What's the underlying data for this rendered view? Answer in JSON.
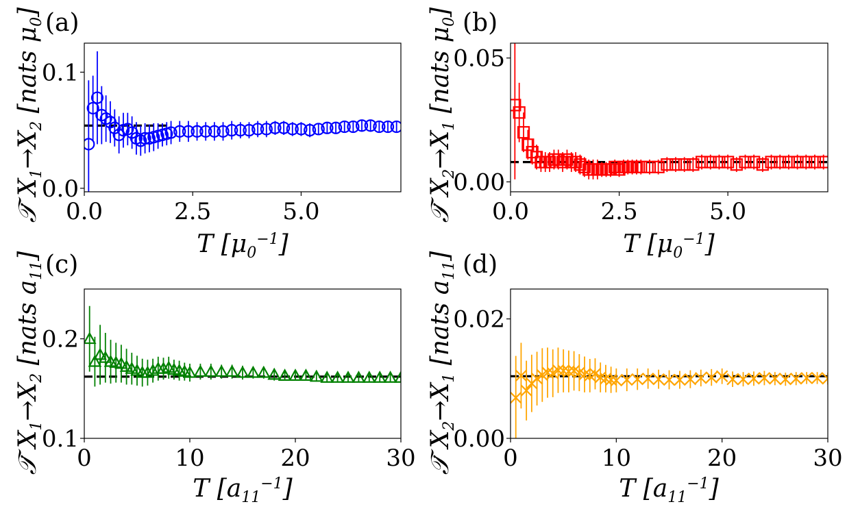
{
  "chart_data": [
    {
      "panel_label": "(a)",
      "type": "scatter",
      "marker": "circle",
      "color": "#0000ff",
      "xlabel": "T [μ0^-1]",
      "ylabel": "𝒯̇ X1→X2 [nats μ0]",
      "xlim": [
        0,
        7.3
      ],
      "ylim": [
        -0.003,
        0.125
      ],
      "xticks": [
        0,
        2.5,
        5
      ],
      "xtick_labels": [
        "0.0",
        "2.5",
        "5.0"
      ],
      "yticks": [
        0,
        0.1
      ],
      "ytick_labels": [
        "0.0",
        "0.1"
      ],
      "reference_line": 0.054,
      "reference_xrange": [
        0,
        2.0
      ],
      "series": [
        {
          "x": [
            0.1,
            0.2,
            0.3,
            0.4,
            0.5,
            0.6,
            0.7,
            0.8,
            0.9,
            1.0,
            1.1,
            1.2,
            1.3,
            1.4,
            1.5,
            1.6,
            1.7,
            1.8,
            1.9,
            2.0,
            2.2,
            2.4,
            2.6,
            2.8,
            3.0,
            3.2,
            3.4,
            3.6,
            3.8,
            4.0,
            4.2,
            4.4,
            4.6,
            4.8,
            5.0,
            5.2,
            5.4,
            5.6,
            5.8,
            6.0,
            6.2,
            6.4,
            6.6,
            6.8,
            7.0,
            7.2
          ],
          "y": [
            0.038,
            0.069,
            0.078,
            0.063,
            0.06,
            0.057,
            0.052,
            0.046,
            0.05,
            0.051,
            0.048,
            0.043,
            0.041,
            0.043,
            0.043,
            0.044,
            0.045,
            0.046,
            0.047,
            0.048,
            0.049,
            0.049,
            0.049,
            0.049,
            0.049,
            0.049,
            0.05,
            0.05,
            0.05,
            0.051,
            0.051,
            0.052,
            0.052,
            0.051,
            0.051,
            0.05,
            0.051,
            0.052,
            0.052,
            0.053,
            0.053,
            0.054,
            0.054,
            0.053,
            0.053,
            0.053
          ],
          "err": [
            0.055,
            0.028,
            0.04,
            0.025,
            0.02,
            0.018,
            0.016,
            0.016,
            0.015,
            0.014,
            0.014,
            0.014,
            0.013,
            0.013,
            0.012,
            0.012,
            0.011,
            0.01,
            0.01,
            0.01,
            0.009,
            0.009,
            0.008,
            0.008,
            0.008,
            0.008,
            0.008,
            0.007,
            0.007,
            0.007,
            0.007,
            0.006,
            0.006,
            0.006,
            0.006,
            0.006,
            0.005,
            0.005,
            0.005,
            0.005,
            0.005,
            0.005,
            0.005,
            0.005,
            0.005,
            0.005
          ]
        }
      ]
    },
    {
      "panel_label": "(b)",
      "type": "scatter",
      "marker": "square",
      "color": "#ff0000",
      "xlabel": "T [μ0^-1]",
      "ylabel": "𝒯̇ X2→X1 [nats μ0]",
      "xlim": [
        0,
        7.3
      ],
      "ylim": [
        -0.004,
        0.056
      ],
      "xticks": [
        0,
        2.5,
        5
      ],
      "xtick_labels": [
        "0.0",
        "2.5",
        "5.0"
      ],
      "yticks": [
        0,
        0.05
      ],
      "ytick_labels": [
        "0.00",
        "0.05"
      ],
      "reference_line": 0.008,
      "reference_xrange": [
        0,
        7.3
      ],
      "series": [
        {
          "x": [
            0.1,
            0.2,
            0.3,
            0.4,
            0.5,
            0.6,
            0.7,
            0.8,
            0.9,
            1.0,
            1.1,
            1.2,
            1.3,
            1.4,
            1.5,
            1.6,
            1.7,
            1.8,
            1.9,
            2.0,
            2.1,
            2.2,
            2.3,
            2.4,
            2.5,
            2.6,
            2.7,
            2.8,
            2.9,
            3.0,
            3.2,
            3.4,
            3.6,
            3.8,
            4.0,
            4.2,
            4.4,
            4.6,
            4.8,
            5.0,
            5.2,
            5.4,
            5.6,
            5.8,
            6.0,
            6.2,
            6.4,
            6.6,
            6.8,
            7.0,
            7.2
          ],
          "y": [
            0.031,
            0.028,
            0.02,
            0.015,
            0.012,
            0.01,
            0.008,
            0.008,
            0.008,
            0.009,
            0.009,
            0.008,
            0.009,
            0.008,
            0.008,
            0.007,
            0.006,
            0.005,
            0.005,
            0.005,
            0.005,
            0.005,
            0.005,
            0.006,
            0.005,
            0.006,
            0.006,
            0.006,
            0.006,
            0.006,
            0.006,
            0.006,
            0.007,
            0.007,
            0.007,
            0.007,
            0.008,
            0.008,
            0.008,
            0.008,
            0.007,
            0.008,
            0.008,
            0.007,
            0.008,
            0.008,
            0.008,
            0.008,
            0.008,
            0.008,
            0.008
          ],
          "err": [
            0.03,
            0.012,
            0.008,
            0.006,
            0.005,
            0.005,
            0.004,
            0.004,
            0.004,
            0.004,
            0.004,
            0.004,
            0.004,
            0.004,
            0.004,
            0.004,
            0.004,
            0.004,
            0.004,
            0.004,
            0.003,
            0.003,
            0.003,
            0.003,
            0.003,
            0.003,
            0.003,
            0.003,
            0.003,
            0.003,
            0.003,
            0.003,
            0.003,
            0.003,
            0.003,
            0.003,
            0.003,
            0.003,
            0.003,
            0.003,
            0.003,
            0.003,
            0.003,
            0.003,
            0.003,
            0.003,
            0.003,
            0.003,
            0.003,
            0.003,
            0.003
          ]
        }
      ]
    },
    {
      "panel_label": "(c)",
      "type": "scatter",
      "marker": "triangle",
      "color": "#008000",
      "xlabel": "T [a11^-1]",
      "ylabel": "𝒯̇ X1→X2 [nats a11]",
      "xlim": [
        0,
        30
      ],
      "ylim": [
        0.1,
        0.25
      ],
      "xticks": [
        0,
        10,
        20,
        30
      ],
      "xtick_labels": [
        "0",
        "10",
        "20",
        "30"
      ],
      "yticks": [
        0.1,
        0.2
      ],
      "ytick_labels": [
        "0.1",
        "0.2"
      ],
      "reference_line": 0.162,
      "reference_xrange": [
        0,
        30
      ],
      "series": [
        {
          "x": [
            0.5,
            1.0,
            1.5,
            2.0,
            2.5,
            3.0,
            3.5,
            4.0,
            4.5,
            5.0,
            5.5,
            6.0,
            6.5,
            7.0,
            7.5,
            8.0,
            8.5,
            9.0,
            9.5,
            10,
            11,
            12,
            13,
            14,
            15,
            16,
            17,
            18,
            19,
            20,
            21,
            22,
            23,
            24,
            25,
            26,
            27,
            28,
            29,
            30
          ],
          "y": [
            0.2,
            0.177,
            0.184,
            0.181,
            0.177,
            0.176,
            0.175,
            0.172,
            0.17,
            0.168,
            0.166,
            0.166,
            0.168,
            0.17,
            0.17,
            0.171,
            0.169,
            0.168,
            0.167,
            0.166,
            0.167,
            0.167,
            0.167,
            0.167,
            0.166,
            0.166,
            0.166,
            0.164,
            0.163,
            0.163,
            0.163,
            0.162,
            0.161,
            0.161,
            0.161,
            0.161,
            0.161,
            0.161,
            0.161,
            0.161
          ],
          "err": [
            0.033,
            0.025,
            0.03,
            0.025,
            0.022,
            0.02,
            0.019,
            0.018,
            0.016,
            0.015,
            0.014,
            0.013,
            0.012,
            0.012,
            0.011,
            0.011,
            0.01,
            0.01,
            0.009,
            0.009,
            0.008,
            0.008,
            0.007,
            0.007,
            0.007,
            0.006,
            0.006,
            0.006,
            0.005,
            0.005,
            0.005,
            0.005,
            0.005,
            0.005,
            0.005,
            0.004,
            0.004,
            0.004,
            0.004,
            0.004
          ]
        }
      ]
    },
    {
      "panel_label": "(d)",
      "type": "scatter",
      "marker": "x",
      "color": "#ffa500",
      "xlabel": "T [a11^-1]",
      "ylabel": "𝒯̇ X2→X1 [nats a11]",
      "xlim": [
        0,
        30
      ],
      "ylim": [
        0,
        0.025
      ],
      "xticks": [
        0,
        10,
        20,
        30
      ],
      "xtick_labels": [
        "0",
        "10",
        "20",
        "30"
      ],
      "yticks": [
        0,
        0.02
      ],
      "ytick_labels": [
        "0.00",
        "0.02"
      ],
      "reference_line": 0.0104,
      "reference_xrange": [
        0,
        30
      ],
      "series": [
        {
          "x": [
            0.5,
            1.0,
            1.5,
            2.0,
            2.5,
            3.0,
            3.5,
            4.0,
            4.5,
            5.0,
            5.5,
            6.0,
            6.5,
            7.0,
            7.5,
            8.0,
            8.5,
            9.0,
            9.5,
            10,
            11,
            12,
            13,
            14,
            15,
            16,
            17,
            18,
            19,
            20,
            21,
            22,
            23,
            24,
            25,
            26,
            27,
            28,
            29,
            30
          ],
          "y": [
            0.0068,
            0.0105,
            0.008,
            0.0092,
            0.01,
            0.0106,
            0.011,
            0.0109,
            0.0114,
            0.0113,
            0.0112,
            0.0113,
            0.011,
            0.0107,
            0.0105,
            0.0108,
            0.0102,
            0.01,
            0.0098,
            0.0097,
            0.0098,
            0.0099,
            0.01,
            0.0099,
            0.0098,
            0.0098,
            0.0099,
            0.0101,
            0.0102,
            0.0104,
            0.0099,
            0.0099,
            0.01,
            0.0101,
            0.01,
            0.0099,
            0.01,
            0.0101,
            0.0101,
            0.01
          ],
          "err": [
            0.007,
            0.0055,
            0.005,
            0.0048,
            0.0045,
            0.0045,
            0.0042,
            0.004,
            0.0038,
            0.0036,
            0.0035,
            0.0033,
            0.0031,
            0.003,
            0.0028,
            0.0026,
            0.0025,
            0.0023,
            0.0022,
            0.002,
            0.0019,
            0.0018,
            0.0017,
            0.0016,
            0.0016,
            0.0015,
            0.0015,
            0.0014,
            0.0014,
            0.0013,
            0.0013,
            0.0012,
            0.0012,
            0.0012,
            0.0011,
            0.0011,
            0.0011,
            0.001,
            0.001,
            0.001
          ]
        }
      ]
    }
  ]
}
